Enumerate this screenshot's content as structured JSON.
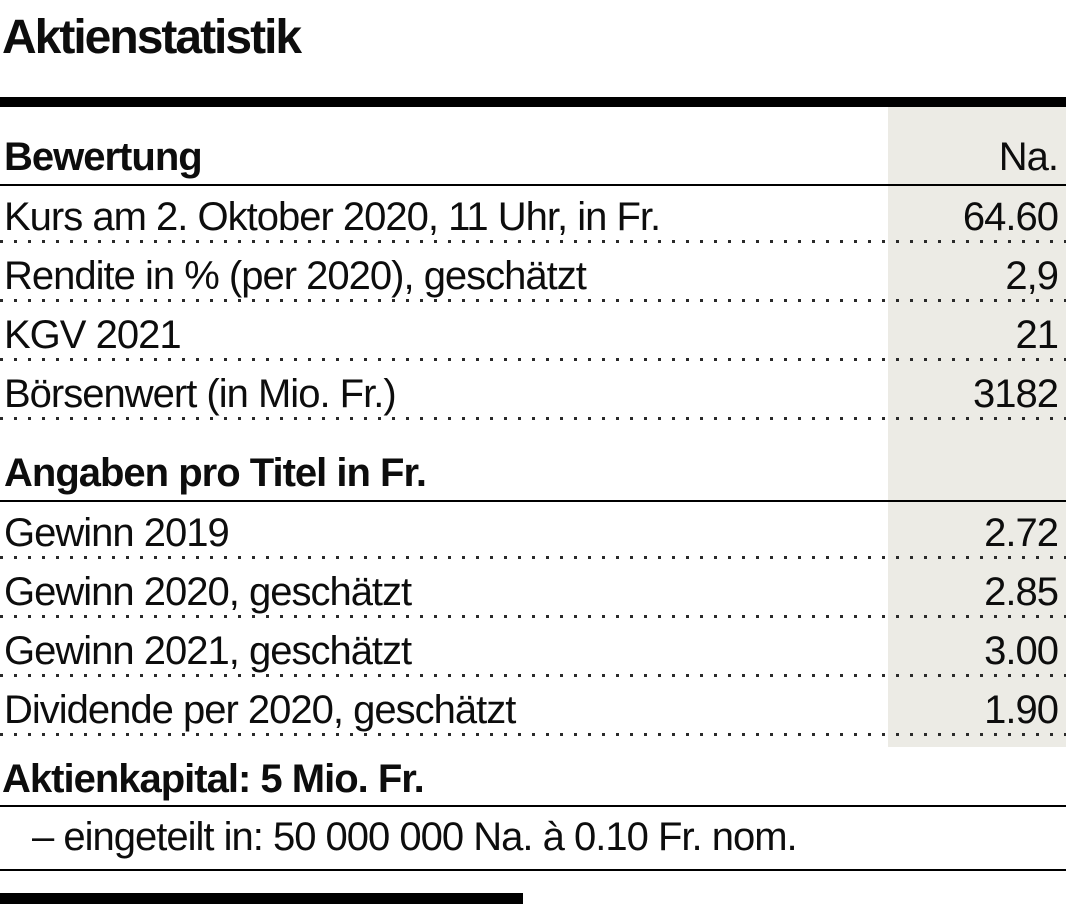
{
  "title": "Aktienstatistik",
  "table": {
    "col_header": "Na.",
    "sections": [
      {
        "heading": "Bewertung",
        "rows": [
          {
            "label": "Kurs am 2. Oktober 2020, 11 Uhr, in Fr.",
            "value": "64.60"
          },
          {
            "label": "Rendite in % (per 2020), geschätzt",
            "value": "2,9"
          },
          {
            "label": "KGV 2021",
            "value": "21"
          },
          {
            "label": "Börsenwert (in Mio. Fr.)",
            "value": "3182"
          }
        ]
      },
      {
        "heading": "Angaben pro Titel in Fr.",
        "rows": [
          {
            "label": "Gewinn 2019",
            "value": "2.72"
          },
          {
            "label": "Gewinn 2020, geschätzt",
            "value": "2.85"
          },
          {
            "label": "Gewinn 2021, geschätzt",
            "value": "3.00"
          },
          {
            "label": "Dividende per 2020, geschätzt",
            "value": "1.90"
          }
        ]
      }
    ]
  },
  "footer": {
    "heading": "Aktienkapital: 5 Mio. Fr.",
    "detail": "– eingeteilt in: 50 000 000 Na. à 0.10 Fr. nom."
  },
  "colors": {
    "highlight_column": "#ECEBE5",
    "rule": "#000000",
    "text": "#0d0d0d"
  }
}
